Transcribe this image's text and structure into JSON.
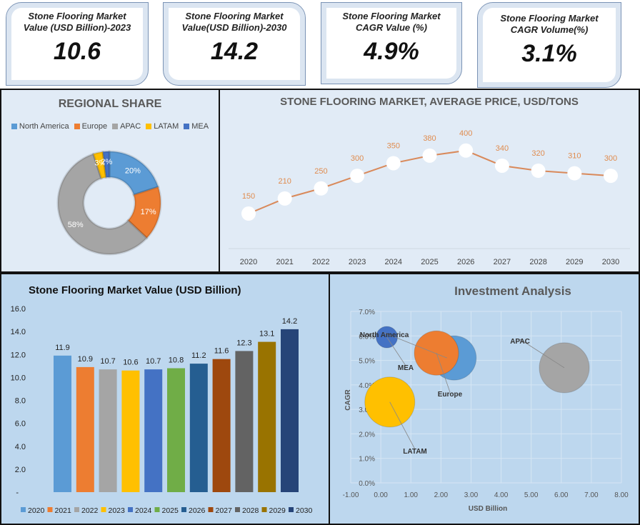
{
  "kpis": [
    {
      "title": "Stone Flooring Market Value (USD Billion)-2023",
      "value": "10.6"
    },
    {
      "title": "Stone Flooring Market Value(USD Billion)-2030",
      "value": "14.2"
    },
    {
      "title": "Stone Flooring Market CAGR Value (%)",
      "value": "4.9%"
    },
    {
      "title": "Stone Flooring Market CAGR Volume(%)",
      "value": "3.1%"
    }
  ],
  "chart_data": [
    {
      "type": "pie",
      "title": "REGIONAL SHARE",
      "legend_position": "top",
      "categories": [
        "North America",
        "Europe",
        "APAC",
        "LATAM",
        "MEA"
      ],
      "values": [
        20,
        17,
        58,
        3,
        2
      ],
      "labels": [
        "20%",
        "17%",
        "58%",
        "3%",
        "2%"
      ],
      "colors": [
        "#5b9bd5",
        "#ed7d31",
        "#a5a5a5",
        "#ffc000",
        "#4472c4"
      ],
      "donut": true
    },
    {
      "type": "line",
      "title": "STONE FLOORING MARKET, AVERAGE PRICE, USD/TONS",
      "x": [
        "2020",
        "2021",
        "2022",
        "2023",
        "2024",
        "2025",
        "2026",
        "2027",
        "2028",
        "2029",
        "2030"
      ],
      "values": [
        150,
        210,
        250,
        300,
        350,
        380,
        400,
        340,
        320,
        310,
        300
      ],
      "line_color": "#d9895a",
      "label_color": "#e08c4f",
      "grid": false
    },
    {
      "type": "bar",
      "title": "Stone Flooring Market Value (USD Billion)",
      "categories": [
        "2020",
        "2021",
        "2022",
        "2023",
        "2024",
        "2025",
        "2026",
        "2027",
        "2028",
        "2029",
        "2030"
      ],
      "values": [
        11.9,
        10.9,
        10.7,
        10.6,
        10.7,
        10.8,
        11.2,
        11.6,
        12.3,
        13.1,
        14.2
      ],
      "colors": [
        "#5b9bd5",
        "#ed7d31",
        "#a5a5a5",
        "#ffc000",
        "#4472c4",
        "#70ad47",
        "#255e91",
        "#9e480e",
        "#636363",
        "#997300",
        "#264478"
      ],
      "ylim": [
        0,
        16
      ],
      "yticks": [
        "-",
        "2.0",
        "4.0",
        "6.0",
        "8.0",
        "10.0",
        "12.0",
        "14.0",
        "16.0"
      ],
      "legend_position": "bottom"
    },
    {
      "type": "scatter",
      "title": "Investment Analysis",
      "xlabel": "USD Billion",
      "ylabel": "CAGR",
      "xlim": [
        -1,
        8
      ],
      "ylim": [
        0,
        7
      ],
      "xticks": [
        "-1.00",
        "0.00",
        "1.00",
        "2.00",
        "3.00",
        "4.00",
        "5.00",
        "6.00",
        "7.00",
        "8.00"
      ],
      "yticks": [
        "0.0%",
        "1.0%",
        "2.0%",
        "3.0%",
        "4.0%",
        "5.0%",
        "6.0%",
        "7.0%"
      ],
      "grid": true,
      "points": [
        {
          "name": "North America",
          "x": 2.2,
          "y": 5.1,
          "size": 20,
          "color": "#5b9bd5"
        },
        {
          "name": "Europe",
          "x": 1.85,
          "y": 5.3,
          "size": 17,
          "color": "#ed7d31"
        },
        {
          "name": "APAC",
          "x": 6.1,
          "y": 4.7,
          "size": 12,
          "color": "#a5a5a5"
        },
        {
          "name": "LATAM",
          "x": 0.3,
          "y": 3.3,
          "size": 20,
          "color": "#ffc000"
        },
        {
          "name": "MEA",
          "x": 0.2,
          "y": 5.95,
          "size": 4,
          "color": "#4472c4"
        }
      ]
    }
  ]
}
